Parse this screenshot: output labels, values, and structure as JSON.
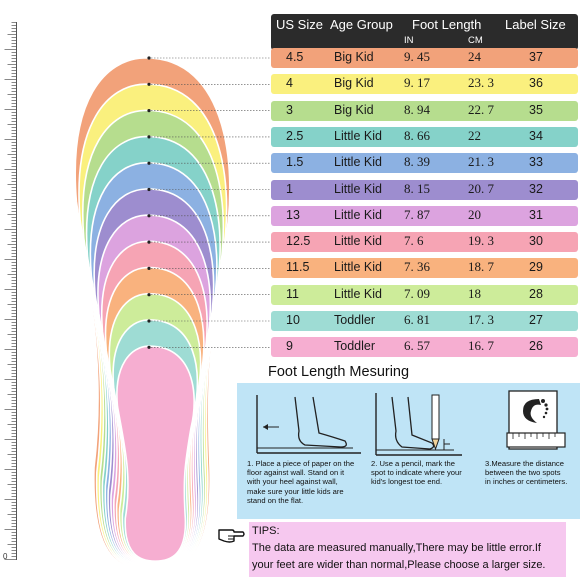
{
  "header": {
    "us_size": "US Size",
    "age_group": "Age Group",
    "foot_length": "Foot Length",
    "label_size": "Label Size",
    "unit_in": "IN",
    "unit_cm": "CM"
  },
  "rows": [
    {
      "us": "4.5",
      "age": "Big Kid",
      "in": "9. 45",
      "cm": "24",
      "label": "37",
      "color": "#f2a27a"
    },
    {
      "us": "4",
      "age": "Big Kid",
      "in": "9. 17",
      "cm": "23. 3",
      "label": "36",
      "color": "#faf07e"
    },
    {
      "us": "3",
      "age": "Big Kid",
      "in": "8. 94",
      "cm": "22. 7",
      "label": "35",
      "color": "#b6dd8e"
    },
    {
      "us": "2.5",
      "age": "Little Kid",
      "in": "8. 66",
      "cm": "22",
      "label": "34",
      "color": "#85d2c9"
    },
    {
      "us": "1.5",
      "age": "Little Kid",
      "in": "8. 39",
      "cm": "21. 3",
      "label": "33",
      "color": "#8cb1e2"
    },
    {
      "us": "1",
      "age": "Little Kid",
      "in": "8. 15",
      "cm": "20. 7",
      "label": "32",
      "color": "#9d8dcf"
    },
    {
      "us": "13",
      "age": "Little Kid",
      "in": "7. 87",
      "cm": "20",
      "label": "31",
      "color": "#dca3df"
    },
    {
      "us": "12.5",
      "age": "Little Kid",
      "in": "7. 6",
      "cm": "19. 3",
      "label": "30",
      "color": "#f6a4b4"
    },
    {
      "us": "11.5",
      "age": "Little Kid",
      "in": "7. 36",
      "cm": "18. 7",
      "label": "29",
      "color": "#f9b27e"
    },
    {
      "us": "11",
      "age": "Little Kid",
      "in": "7. 09",
      "cm": "18",
      "label": "28",
      "color": "#cdec9a"
    },
    {
      "us": "10",
      "age": "Toddler",
      "in": "6. 81",
      "cm": "17. 3",
      "label": "27",
      "color": "#9edcd4"
    },
    {
      "us": "9",
      "age": "Toddler",
      "in": "6. 57",
      "cm": "16. 7",
      "label": "26",
      "color": "#f6aed1"
    }
  ],
  "ruler": {
    "zero_label": "0"
  },
  "measuring": {
    "title": "Foot Length Mesuring",
    "step1": [
      "1. Place a piece of paper on the",
      "floor against wall. Stand on it",
      "with your heel against wall,",
      "make sure your little kids are",
      "stand on the flat."
    ],
    "step2": [
      "2. Use a pencil, mark the",
      "spot to indicate where your",
      "kid's longest toe end."
    ],
    "step3": [
      "3.Measure the distance",
      "between the two spots",
      "in inches or centimeters."
    ]
  },
  "tips": {
    "heading": "TIPS:",
    "line1": "The data are measured manually,There may be little error.If",
    "line2": "your feet are wider than normal,Please choose a larger size."
  },
  "icons": [
    "pointing-hand-icon",
    "ruler-icon",
    "footprint-icon",
    "pencil-icon"
  ]
}
